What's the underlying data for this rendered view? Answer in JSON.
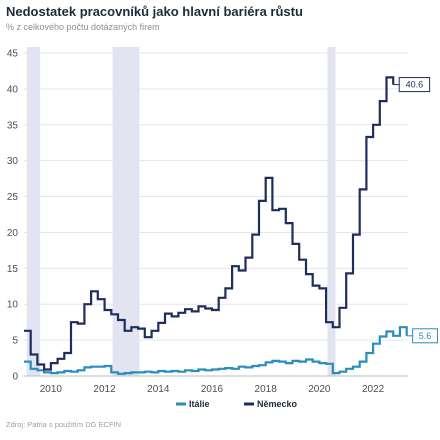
{
  "header": {
    "title": "Nedostatek pracovníků jako hlavní bariéra růstu",
    "subtitle": "% z celkového počtu dotázaných firem"
  },
  "footer": {
    "source": "Zdroj: Patria s použitím DG ECFIN"
  },
  "chart_data": {
    "type": "line",
    "title": "Nedostatek pracovníků jako hlavní bariéra růstu",
    "subtitle": "% z celkového počtu dotázaných firem",
    "xlim": [
      2009.0,
      2023.3
    ],
    "ylim": [
      0,
      45
    ],
    "x_ticks": [
      2010,
      2012,
      2014,
      2016,
      2018,
      2020,
      2022
    ],
    "x_tick_labels": [
      "2010",
      "2012",
      "2014",
      "2016",
      "2018",
      "2020",
      "2022"
    ],
    "y_ticks": [
      0,
      5,
      10,
      15,
      20,
      25,
      30,
      35,
      40,
      45
    ],
    "y_tick_labels": [
      "0",
      "5",
      "10",
      "15",
      "20",
      "25",
      "30",
      "35",
      "40",
      "45"
    ],
    "grid": "horizontal",
    "legend_position": "bottom-center",
    "shaded_periods": [
      [
        2009.1,
        2009.6
      ],
      [
        2012.3,
        2013.3
      ],
      [
        2020.3,
        2020.6
      ]
    ],
    "shaded_color": "#e3e4f2",
    "series": [
      {
        "name": "Itálie",
        "color": "#2b8cbe",
        "end_label": "5.6",
        "points": [
          [
            2009.0,
            2.0
          ],
          [
            2009.25,
            1.0
          ],
          [
            2009.5,
            0.8
          ],
          [
            2009.75,
            0.5
          ],
          [
            2010.0,
            0.4
          ],
          [
            2010.25,
            0.5
          ],
          [
            2010.5,
            0.7
          ],
          [
            2010.75,
            0.6
          ],
          [
            2011.0,
            0.8
          ],
          [
            2011.25,
            1.2
          ],
          [
            2011.5,
            1.3
          ],
          [
            2011.75,
            1.3
          ],
          [
            2012.0,
            1.4
          ],
          [
            2012.25,
            0.5
          ],
          [
            2012.5,
            0.3
          ],
          [
            2012.75,
            0.4
          ],
          [
            2013.0,
            0.5
          ],
          [
            2013.25,
            0.5
          ],
          [
            2013.5,
            0.6
          ],
          [
            2013.75,
            0.5
          ],
          [
            2014.0,
            0.7
          ],
          [
            2014.25,
            0.6
          ],
          [
            2014.5,
            0.7
          ],
          [
            2014.75,
            0.6
          ],
          [
            2015.0,
            0.8
          ],
          [
            2015.25,
            0.7
          ],
          [
            2015.5,
            0.9
          ],
          [
            2015.75,
            0.8
          ],
          [
            2016.0,
            0.9
          ],
          [
            2016.25,
            1.0
          ],
          [
            2016.5,
            1.1
          ],
          [
            2016.75,
            1.0
          ],
          [
            2017.0,
            1.3
          ],
          [
            2017.25,
            1.2
          ],
          [
            2017.5,
            1.4
          ],
          [
            2017.75,
            1.5
          ],
          [
            2018.0,
            1.9
          ],
          [
            2018.25,
            2.1
          ],
          [
            2018.5,
            2.0
          ],
          [
            2018.75,
            1.8
          ],
          [
            2019.0,
            2.1
          ],
          [
            2019.25,
            2.0
          ],
          [
            2019.5,
            2.3
          ],
          [
            2019.75,
            2.0
          ],
          [
            2020.0,
            1.8
          ],
          [
            2020.25,
            1.7
          ],
          [
            2020.5,
            0.4
          ],
          [
            2020.75,
            0.6
          ],
          [
            2021.0,
            1.0
          ],
          [
            2021.25,
            1.3
          ],
          [
            2021.5,
            2.0
          ],
          [
            2021.75,
            3.2
          ],
          [
            2022.0,
            4.5
          ],
          [
            2022.25,
            5.5
          ],
          [
            2022.5,
            6.2
          ],
          [
            2022.75,
            5.6
          ],
          [
            2023.0,
            6.8
          ],
          [
            2023.25,
            5.6
          ]
        ]
      },
      {
        "name": "Německo",
        "color": "#1f2d5c",
        "end_label": "40.6",
        "points": [
          [
            2009.0,
            6.3
          ],
          [
            2009.25,
            3.0
          ],
          [
            2009.5,
            1.6
          ],
          [
            2009.75,
            0.9
          ],
          [
            2010.0,
            1.8
          ],
          [
            2010.25,
            2.4
          ],
          [
            2010.5,
            3.2
          ],
          [
            2010.75,
            7.5
          ],
          [
            2011.0,
            7.3
          ],
          [
            2011.25,
            10.0
          ],
          [
            2011.5,
            11.8
          ],
          [
            2011.75,
            10.7
          ],
          [
            2012.0,
            9.2
          ],
          [
            2012.25,
            8.6
          ],
          [
            2012.5,
            7.8
          ],
          [
            2012.75,
            6.3
          ],
          [
            2013.0,
            6.8
          ],
          [
            2013.25,
            6.6
          ],
          [
            2013.5,
            5.4
          ],
          [
            2013.75,
            6.3
          ],
          [
            2014.0,
            7.4
          ],
          [
            2014.25,
            8.7
          ],
          [
            2014.5,
            8.3
          ],
          [
            2014.75,
            8.8
          ],
          [
            2015.0,
            9.3
          ],
          [
            2015.25,
            9.0
          ],
          [
            2015.5,
            9.7
          ],
          [
            2015.75,
            9.4
          ],
          [
            2016.0,
            9.2
          ],
          [
            2016.25,
            10.9
          ],
          [
            2016.5,
            12.2
          ],
          [
            2016.75,
            15.3
          ],
          [
            2017.0,
            14.7
          ],
          [
            2017.25,
            16.5
          ],
          [
            2017.5,
            19.7
          ],
          [
            2017.75,
            24.4
          ],
          [
            2018.0,
            27.6
          ],
          [
            2018.25,
            23.1
          ],
          [
            2018.5,
            23.3
          ],
          [
            2018.75,
            21.3
          ],
          [
            2019.0,
            18.4
          ],
          [
            2019.25,
            16.2
          ],
          [
            2019.5,
            14.2
          ],
          [
            2019.75,
            12.6
          ],
          [
            2020.0,
            12.2
          ],
          [
            2020.25,
            7.5
          ],
          [
            2020.5,
            6.8
          ],
          [
            2020.75,
            9.5
          ],
          [
            2021.0,
            14.3
          ],
          [
            2021.25,
            19.7
          ],
          [
            2021.5,
            26.0
          ],
          [
            2021.75,
            33.3
          ],
          [
            2022.0,
            35.0
          ],
          [
            2022.25,
            38.3
          ],
          [
            2022.5,
            41.6
          ],
          [
            2022.75,
            40.6
          ]
        ]
      }
    ]
  }
}
